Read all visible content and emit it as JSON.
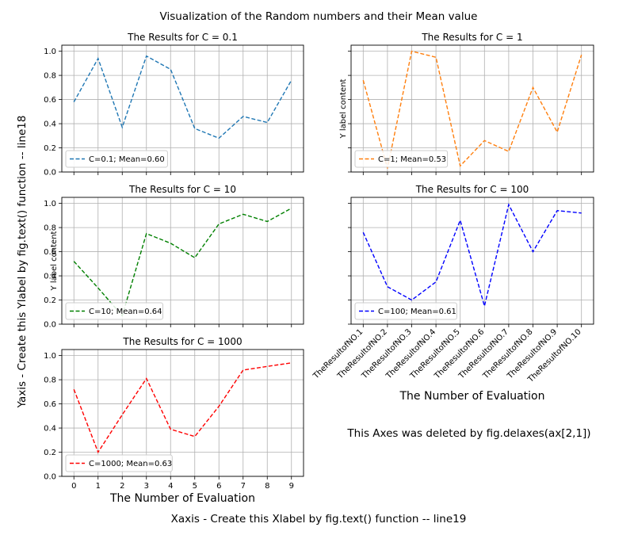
{
  "figure": {
    "suptitle": "Visualization of the Random numbers and their Mean value",
    "supxlabel": "Xaxis - Create this Xlabel by fig.text() function -- line19",
    "supylabel": "Yaxis - Create this Ylabel by fig.text() function -- line18",
    "deleted_note": "This Axes was deleted by fig.delaxes(ax[2,1])",
    "deleted_note_color": "#0000ff"
  },
  "chart_data": [
    {
      "type": "line",
      "title": "The Results for C = 0.1",
      "xlabel": "",
      "ylabel": "",
      "x": [
        0,
        1,
        2,
        3,
        4,
        5,
        6,
        7,
        8,
        9
      ],
      "ylim": [
        0,
        1.05
      ],
      "yticks": [
        "0.0",
        "0.2",
        "0.4",
        "0.6",
        "0.8",
        "1.0"
      ],
      "grid": true,
      "legend_loc": "lower-left",
      "series": [
        {
          "name": "C=0.1; Mean=0.60",
          "color": "#1f77b4",
          "values": [
            0.58,
            0.94,
            0.37,
            0.96,
            0.85,
            0.36,
            0.28,
            0.46,
            0.41,
            0.76
          ]
        }
      ]
    },
    {
      "type": "line",
      "title": "The Results for C = 1",
      "xlabel": "",
      "ylabel": "Y label content",
      "x": [
        0,
        1,
        2,
        3,
        4,
        5,
        6,
        7,
        8,
        9
      ],
      "ylim": [
        0,
        1.05
      ],
      "grid": true,
      "legend_loc": "lower-left",
      "series": [
        {
          "name": "C=1; Mean=0.53",
          "color": "#ff7f0e",
          "values": [
            0.76,
            0.03,
            1.0,
            0.95,
            0.05,
            0.26,
            0.17,
            0.7,
            0.33,
            0.97
          ]
        }
      ]
    },
    {
      "type": "line",
      "title": "The Results for C = 10",
      "xlabel": "",
      "ylabel": "Y label content",
      "x": [
        0,
        1,
        2,
        3,
        4,
        5,
        6,
        7,
        8,
        9
      ],
      "ylim": [
        0,
        1.05
      ],
      "yticks": [
        "0.0",
        "0.2",
        "0.4",
        "0.6",
        "0.8",
        "1.0"
      ],
      "grid": true,
      "legend_loc": "lower-left",
      "series": [
        {
          "name": "C=10; Mean=0.64",
          "color": "#008000",
          "values": [
            0.52,
            0.3,
            0.07,
            0.75,
            0.67,
            0.55,
            0.83,
            0.91,
            0.85,
            0.96
          ]
        }
      ]
    },
    {
      "type": "line",
      "title": "The Results for C = 100",
      "xlabel": "The Number of Evaluation",
      "ylabel": "",
      "x": [
        0,
        1,
        2,
        3,
        4,
        5,
        6,
        7,
        8,
        9
      ],
      "xticklabels": [
        "TheResultofNO.1",
        "TheResultofNO.2",
        "TheResultofNO.3",
        "TheResultofNO.4",
        "TheResultofNO.5",
        "TheResultofNO.6",
        "TheResultofNO.7",
        "TheResultofNO.8",
        "TheResultofNO.9",
        "TheResultofNO.10"
      ],
      "ylim": [
        0,
        1.05
      ],
      "grid": true,
      "legend_loc": "lower-left",
      "series": [
        {
          "name": "C=100; Mean=0.61",
          "color": "#0000ff",
          "values": [
            0.76,
            0.31,
            0.2,
            0.35,
            0.86,
            0.15,
            0.99,
            0.6,
            0.94,
            0.92
          ]
        }
      ]
    },
    {
      "type": "line",
      "title": "The Results for C = 1000",
      "xlabel": "The Number of Evaluation",
      "ylabel": "",
      "x": [
        0,
        1,
        2,
        3,
        4,
        5,
        6,
        7,
        8,
        9
      ],
      "xticklabels": [
        "0",
        "1",
        "2",
        "3",
        "4",
        "5",
        "6",
        "7",
        "8",
        "9"
      ],
      "ylim": [
        0,
        1.05
      ],
      "yticks": [
        "0.0",
        "0.2",
        "0.4",
        "0.6",
        "0.8",
        "1.0"
      ],
      "grid": true,
      "legend_loc": "lower-left",
      "series": [
        {
          "name": "C=1000; Mean=0.63",
          "color": "#ff0000",
          "values": [
            0.72,
            0.2,
            0.51,
            0.81,
            0.39,
            0.33,
            0.58,
            0.88,
            0.91,
            0.94
          ]
        }
      ]
    }
  ]
}
